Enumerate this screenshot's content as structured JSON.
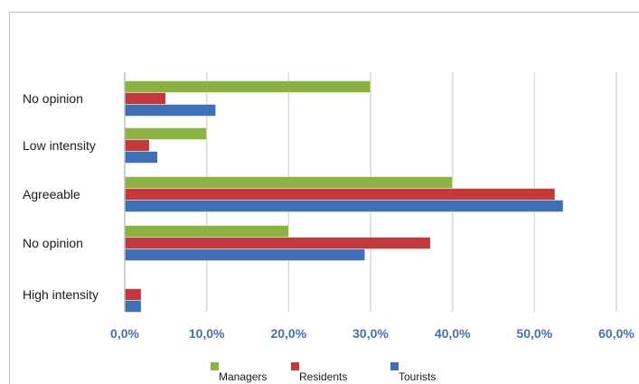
{
  "chart_data": {
    "type": "bar",
    "orientation": "horizontal",
    "categories": [
      "No opinion",
      "Low intensity",
      "Agreeable",
      "No opinion",
      "High intensity"
    ],
    "series": [
      {
        "name": "Managers",
        "color": "#8cb342",
        "values": [
          30.0,
          10.0,
          40.0,
          20.0,
          0.0
        ]
      },
      {
        "name": "Residents",
        "color": "#c0393b",
        "values": [
          5.0,
          3.0,
          52.5,
          37.3,
          2.0
        ]
      },
      {
        "name": "Tourists",
        "color": "#3f6fb5",
        "values": [
          11.1,
          4.0,
          53.5,
          29.3,
          2.0
        ]
      }
    ],
    "xlim": [
      0,
      60
    ],
    "x_ticks": [
      0,
      10,
      20,
      30,
      40,
      50,
      60
    ],
    "x_tick_labels": [
      "0,0%",
      "10,0%",
      "20,0%",
      "30,0%",
      "40,0%",
      "50,0%",
      "60,0%"
    ],
    "grid": true,
    "legend_position": "bottom",
    "title": "",
    "xlabel": "",
    "ylabel": ""
  }
}
